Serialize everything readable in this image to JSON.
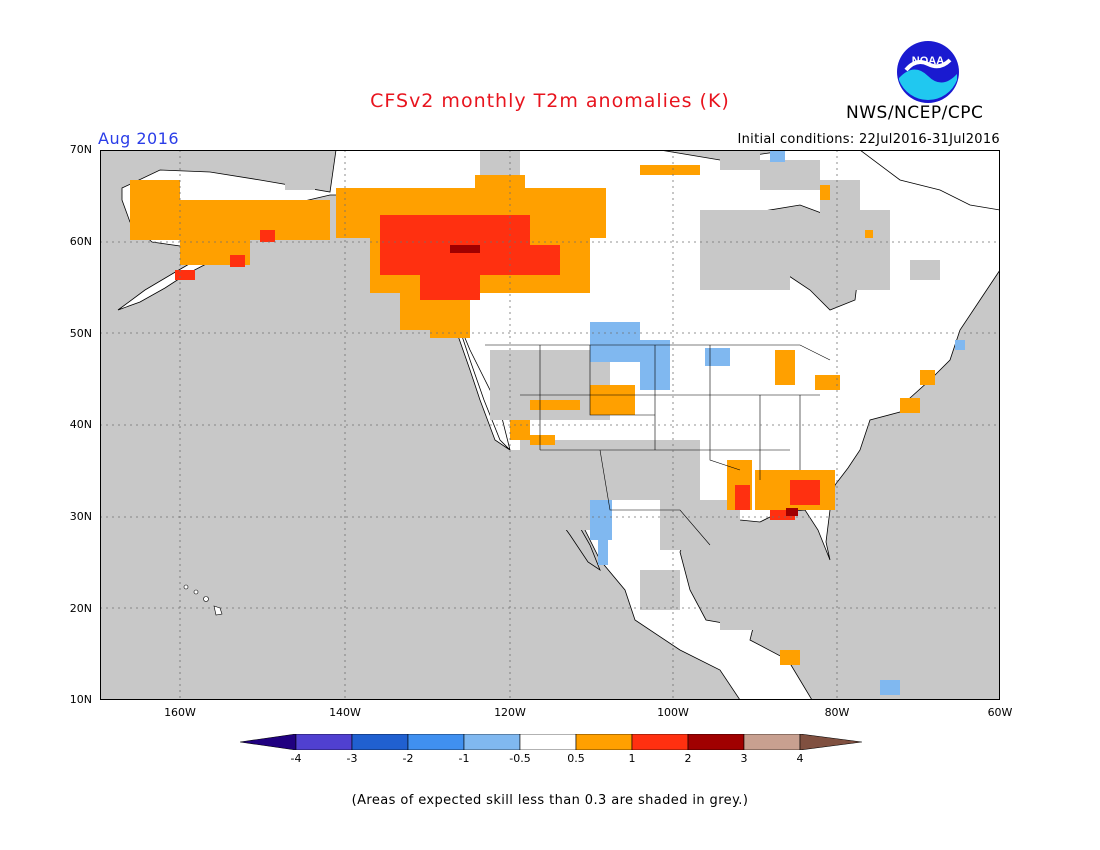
{
  "header": {
    "title": "CFSv2 monthly T2m anomalies (K)",
    "agency": "NWS/NCEP/CPC",
    "period": "Aug 2016",
    "initial_conditions": "Initial conditions: 22Jul2016-31Jul2016"
  },
  "logo": {
    "text": "NOAA",
    "icon": "noaa-logo-icon"
  },
  "map": {
    "latitude_labels": [
      "70N",
      "60N",
      "50N",
      "40N",
      "30N",
      "20N",
      "10N"
    ],
    "longitude_labels": [
      "160W",
      "140W",
      "120W",
      "100W",
      "80W",
      "60W"
    ],
    "ocean_color": "#c8c8c8",
    "land_color": "#ffffff"
  },
  "colorbar": {
    "labels": [
      "-4",
      "-3",
      "-2",
      "-1",
      "-0.5",
      "0.5",
      "1",
      "2",
      "3",
      "4"
    ],
    "colors": [
      "#200080",
      "#5040d0",
      "#2060d0",
      "#4090f0",
      "#80b8f0",
      "#ffffff",
      "#ffa000",
      "#ff3010",
      "#a00000",
      "#c8a090",
      "#805040"
    ]
  },
  "footnote": "(Areas of expected skill less than 0.3 are shaded in grey.)"
}
